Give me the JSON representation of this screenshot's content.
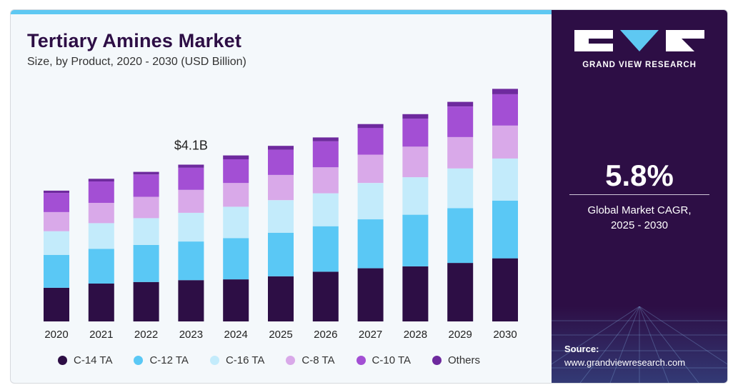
{
  "header": {
    "title": "Tertiary Amines Market",
    "subtitle": "Size, by Product, 2020 - 2030 (USD Billion)"
  },
  "colors": {
    "dark_panel": "#2d0e45",
    "accent_bar": "#5ec8f2"
  },
  "chart_data": {
    "type": "bar",
    "stacked": true,
    "title": "Tertiary Amines Market",
    "subtitle": "Size, by Product, 2020 - 2030 (USD Billion)",
    "categories": [
      "2020",
      "2021",
      "2022",
      "2023",
      "2024",
      "2025",
      "2026",
      "2027",
      "2028",
      "2029",
      "2030"
    ],
    "series": [
      {
        "name": "C-14 TA",
        "color": "#2d0e45",
        "values": [
          0.88,
          0.99,
          1.03,
          1.08,
          1.1,
          1.18,
          1.3,
          1.39,
          1.44,
          1.53,
          1.65
        ]
      },
      {
        "name": "C-12 TA",
        "color": "#5ac8f5",
        "values": [
          0.86,
          0.91,
          0.97,
          1.01,
          1.08,
          1.14,
          1.19,
          1.28,
          1.35,
          1.43,
          1.51
        ]
      },
      {
        "name": "C-16 TA",
        "color": "#c3ebfb",
        "values": [
          0.62,
          0.67,
          0.7,
          0.75,
          0.82,
          0.85,
          0.86,
          0.95,
          0.98,
          1.04,
          1.1
        ]
      },
      {
        "name": "C-8 TA",
        "color": "#d9a9e9",
        "values": [
          0.5,
          0.53,
          0.56,
          0.6,
          0.62,
          0.66,
          0.68,
          0.74,
          0.8,
          0.82,
          0.86
        ]
      },
      {
        "name": "C-10 TA",
        "color": "#a34fd4",
        "values": [
          0.5,
          0.56,
          0.58,
          0.58,
          0.62,
          0.66,
          0.68,
          0.7,
          0.73,
          0.8,
          0.82
        ]
      },
      {
        "name": "Others",
        "color": "#6e2a9e",
        "values": [
          0.06,
          0.07,
          0.07,
          0.08,
          0.1,
          0.1,
          0.1,
          0.1,
          0.12,
          0.12,
          0.14
        ]
      }
    ],
    "annotations": [
      {
        "category": "2023",
        "text": "$4.1B"
      }
    ],
    "ylim": [
      0,
      6.2
    ],
    "grid": false,
    "legend": "bottom"
  },
  "sidebar": {
    "logo_text": "GRAND VIEW RESEARCH",
    "cagr_value": "5.8%",
    "cagr_label_line1": "Global Market CAGR,",
    "cagr_label_line2": "2025 - 2030",
    "source_label": "Source:",
    "source_url": "www.grandviewresearch.com"
  }
}
